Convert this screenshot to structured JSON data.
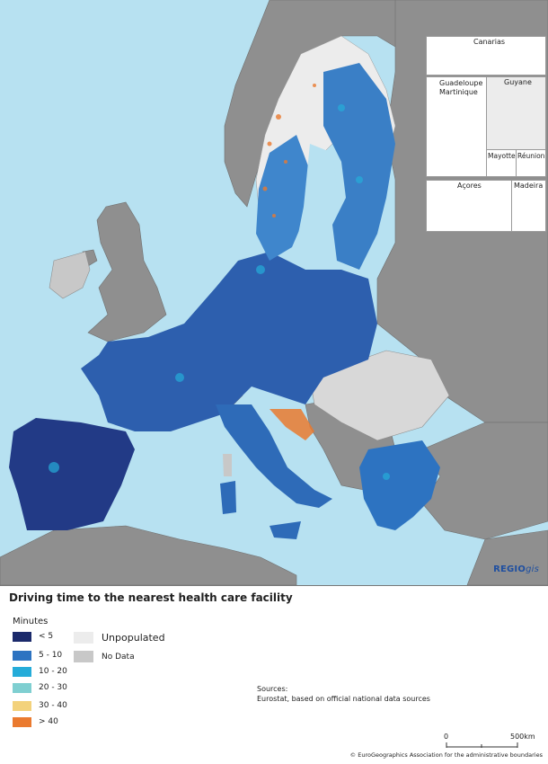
{
  "map": {
    "insets": [
      "Canarias",
      "Guadeloupe",
      "Martinique",
      "Guyane",
      "Mayotte",
      "Réunion",
      "Açores",
      "Madeira"
    ],
    "credit_brand": "REGIO",
    "credit_suffix": "gis"
  },
  "title": "Driving time to the nearest health care facility",
  "legend": {
    "title": "Minutes",
    "classes": [
      {
        "label": "< 5",
        "color": "#1b2a6b"
      },
      {
        "label": "5 - 10",
        "color": "#2d73c1"
      },
      {
        "label": "10 - 20",
        "color": "#25acd9"
      },
      {
        "label": "20 - 30",
        "color": "#7fcfd1"
      },
      {
        "label": "30 - 40",
        "color": "#f3d27c"
      },
      {
        "label": "> 40",
        "color": "#ea7a2f"
      }
    ],
    "unpopulated": {
      "label": "Unpopulated",
      "color": "#ececec"
    },
    "no_data": {
      "label": "No Data",
      "color": "#c8c8c8"
    }
  },
  "sources": {
    "heading": "Sources:",
    "text": "Eurostat, based on official national data sources"
  },
  "scale": {
    "zero": "0",
    "max": "500",
    "unit": "km"
  },
  "copyright": "© EuroGeographics Association for the administrative boundaries",
  "colors": {
    "sea": "#b7e1f1",
    "non_eu": "#8f8f8f",
    "unpopulated": "#ececec",
    "no_data": "#c8c8c8"
  }
}
